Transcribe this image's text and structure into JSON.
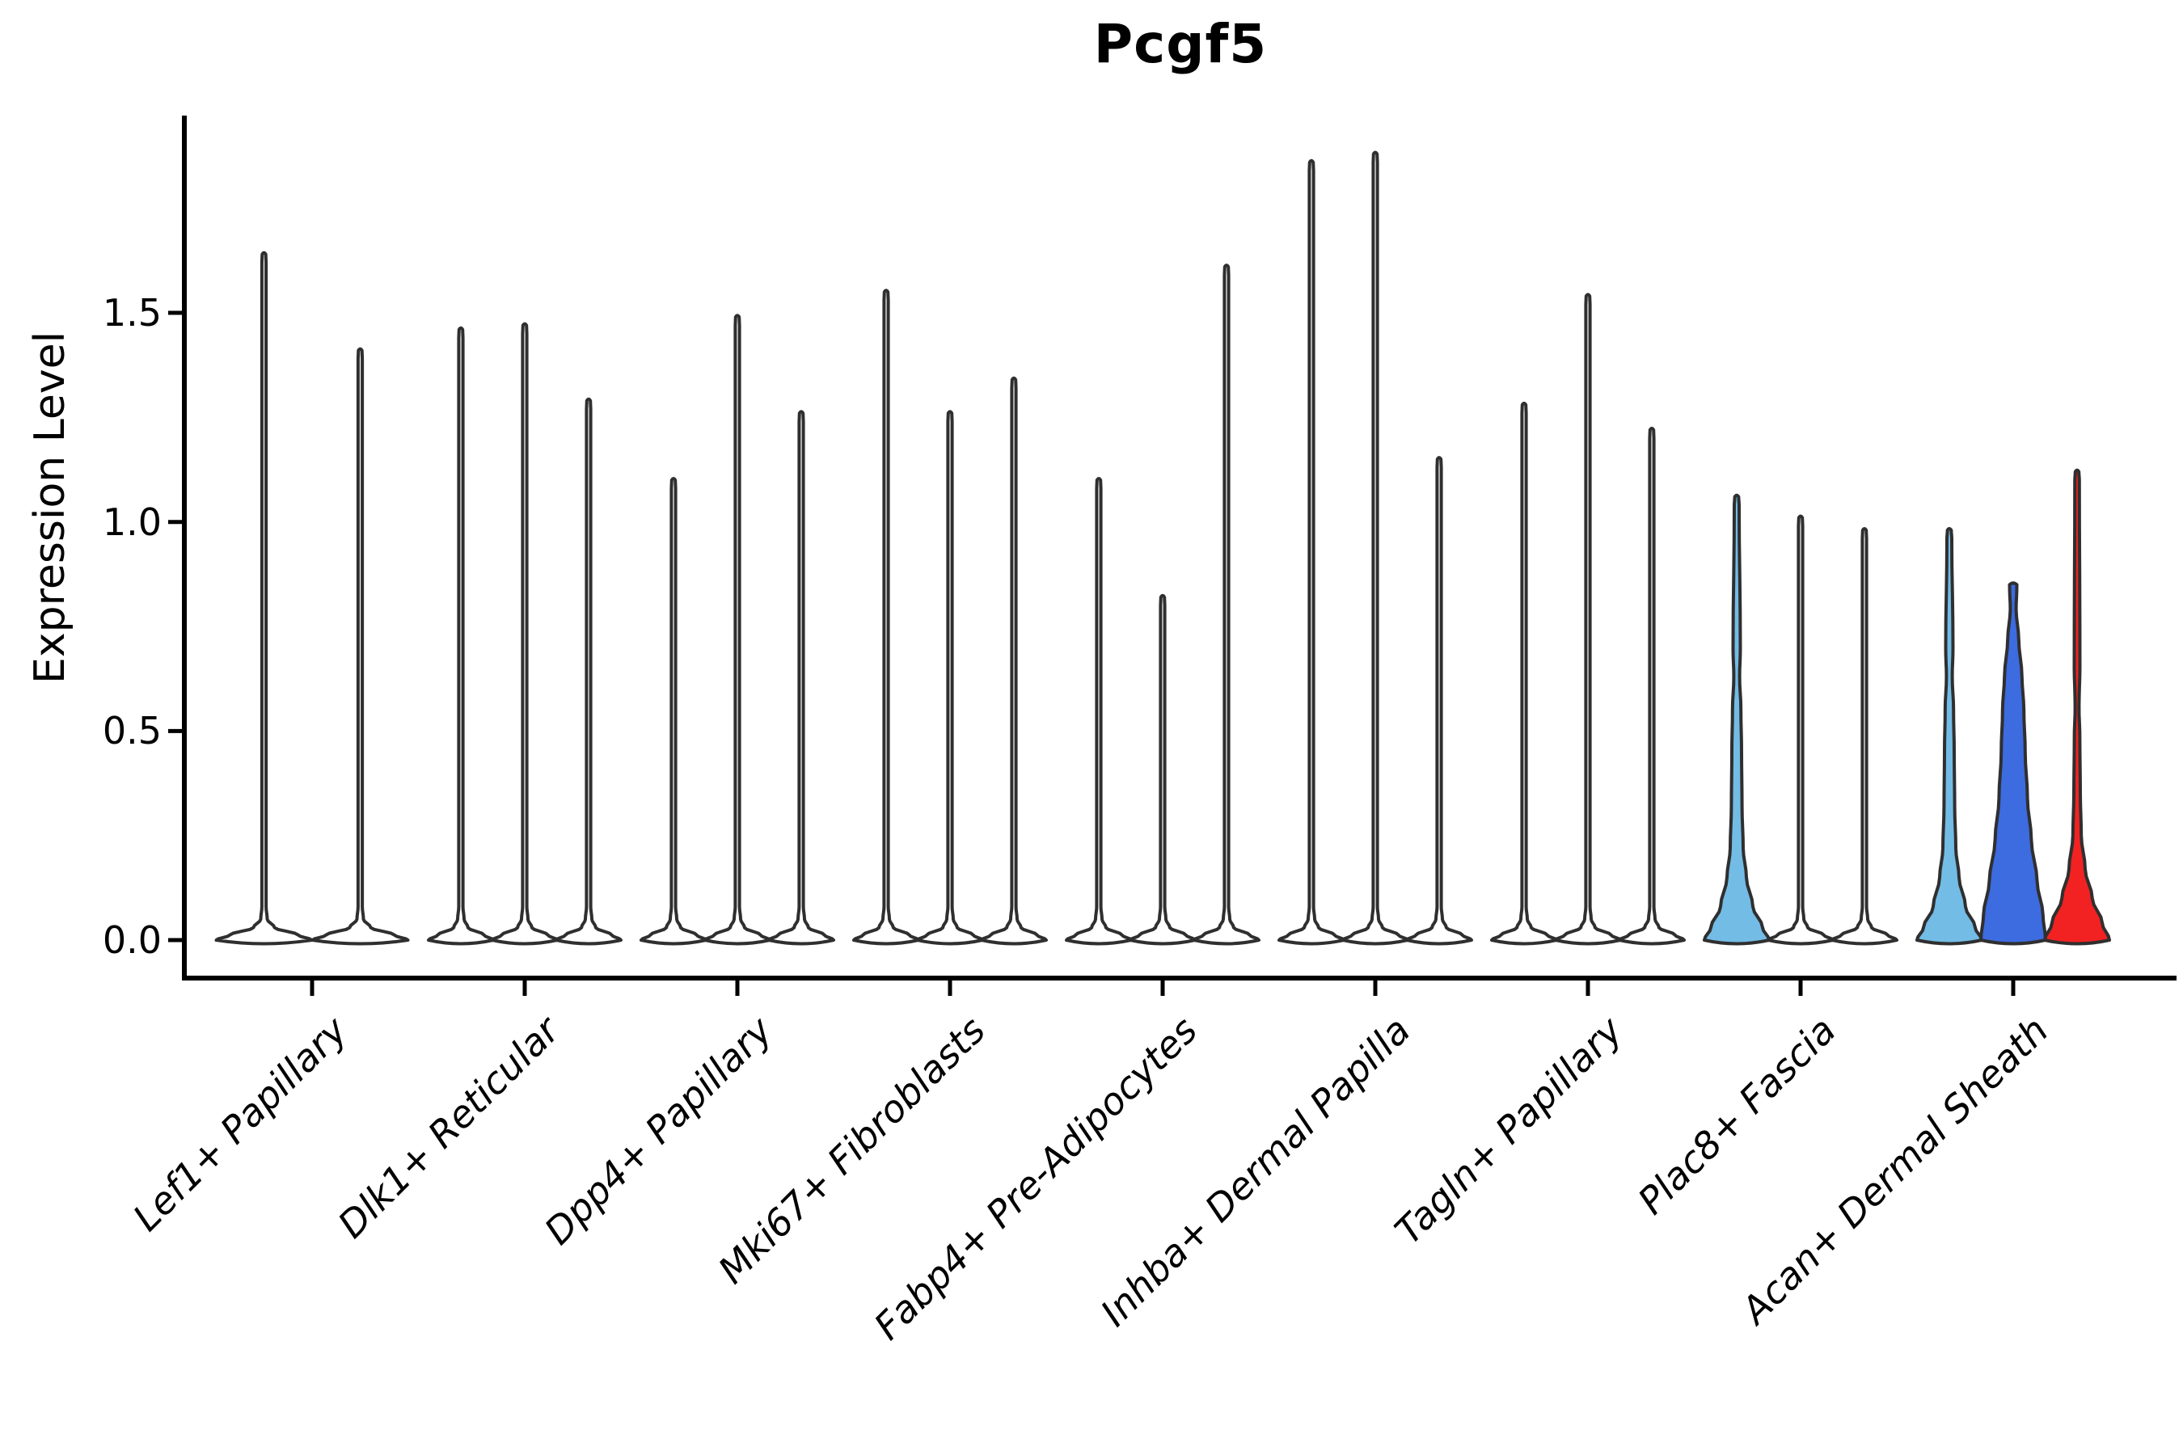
{
  "chart_data": {
    "type": "violin",
    "title": "Pcgf5",
    "ylabel": "Expression Level",
    "ylim": [
      0,
      1.97
    ],
    "yticks": [
      0.0,
      0.5,
      1.0,
      1.5
    ],
    "ytick_labels": [
      "0.0",
      "0.5",
      "1.0",
      "1.5"
    ],
    "grid": false,
    "legend": null,
    "categories": [
      "Lef1+ Papillary",
      "Dlk1+ Reticular",
      "Dpp4+ Papillary",
      "Mki67+ Fibroblasts",
      "Fabp4+ Pre-Adipocytes",
      "Inhba+ Dermal Papilla",
      "Tagln+ Papillary",
      "Plac8+ Fascia",
      "Acan+ Dermal Sheath"
    ],
    "groups": [
      {
        "category": "Lef1+ Papillary",
        "violins": [
          {
            "max": 1.64,
            "fill": "white",
            "shape": "spike"
          },
          {
            "max": 1.41,
            "fill": "white",
            "shape": "spike"
          }
        ]
      },
      {
        "category": "Dlk1+ Reticular",
        "violins": [
          {
            "max": 1.46,
            "fill": "white",
            "shape": "spike"
          },
          {
            "max": 1.47,
            "fill": "white",
            "shape": "spike"
          },
          {
            "max": 1.29,
            "fill": "white",
            "shape": "spike"
          }
        ]
      },
      {
        "category": "Dpp4+ Papillary",
        "violins": [
          {
            "max": 1.1,
            "fill": "white",
            "shape": "spike"
          },
          {
            "max": 1.49,
            "fill": "white",
            "shape": "spike"
          },
          {
            "max": 1.26,
            "fill": "white",
            "shape": "spike"
          }
        ]
      },
      {
        "category": "Mki67+ Fibroblasts",
        "violins": [
          {
            "max": 1.55,
            "fill": "white",
            "shape": "spike"
          },
          {
            "max": 1.26,
            "fill": "white",
            "shape": "spike"
          },
          {
            "max": 1.34,
            "fill": "white",
            "shape": "spike"
          }
        ]
      },
      {
        "category": "Fabp4+ Pre-Adipocytes",
        "violins": [
          {
            "max": 1.1,
            "fill": "white",
            "shape": "spike"
          },
          {
            "max": 0.82,
            "fill": "white",
            "shape": "spike"
          },
          {
            "max": 1.61,
            "fill": "white",
            "shape": "spike"
          }
        ]
      },
      {
        "category": "Inhba+ Dermal Papilla",
        "violins": [
          {
            "max": 1.86,
            "fill": "white",
            "shape": "spike"
          },
          {
            "max": 1.88,
            "fill": "white",
            "shape": "spike"
          },
          {
            "max": 1.15,
            "fill": "white",
            "shape": "spike"
          }
        ]
      },
      {
        "category": "Tagln+ Papillary",
        "violins": [
          {
            "max": 1.28,
            "fill": "white",
            "shape": "spike"
          },
          {
            "max": 1.54,
            "fill": "white",
            "shape": "spike"
          },
          {
            "max": 1.22,
            "fill": "white",
            "shape": "spike"
          }
        ]
      },
      {
        "category": "Plac8+ Fascia",
        "violins": [
          {
            "max": 1.06,
            "fill": "skyblue",
            "shape": "skyblue"
          },
          {
            "max": 1.01,
            "fill": "white",
            "shape": "spike"
          },
          {
            "max": 0.98,
            "fill": "white",
            "shape": "spike"
          }
        ]
      },
      {
        "category": "Acan+ Dermal Sheath",
        "violins": [
          {
            "max": 0.98,
            "fill": "skyblue",
            "shape": "skyblue"
          },
          {
            "max": 0.85,
            "fill": "blue",
            "shape": "blue"
          },
          {
            "max": 1.12,
            "fill": "red",
            "shape": "red"
          }
        ]
      }
    ],
    "colors": {
      "outline": "#2f2f2f",
      "white": "#ffffff",
      "skyblue": "#73bce6",
      "blue": "#3d6be0",
      "red": "#f22222",
      "axis": "#000000",
      "text": "#000000"
    }
  }
}
